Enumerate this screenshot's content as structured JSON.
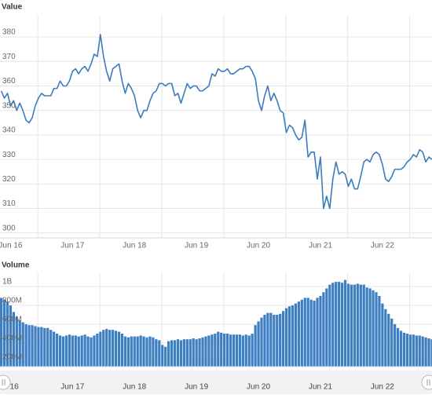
{
  "chart_data": [
    {
      "type": "line",
      "title": "Value",
      "x": [
        2016.41,
        2016.46,
        2016.51,
        2016.56,
        2016.61,
        2016.66,
        2016.71,
        2016.76,
        2016.81,
        2016.86,
        2016.91,
        2016.96,
        2017.01,
        2017.06,
        2017.11,
        2017.16,
        2017.21,
        2017.26,
        2017.31,
        2017.36,
        2017.41,
        2017.46,
        2017.51,
        2017.56,
        2017.61,
        2017.66,
        2017.71,
        2017.76,
        2017.81,
        2017.86,
        2017.91,
        2017.96,
        2018.01,
        2018.06,
        2018.11,
        2018.16,
        2018.21,
        2018.26,
        2018.31,
        2018.36,
        2018.41,
        2018.46,
        2018.51,
        2018.56,
        2018.61,
        2018.66,
        2018.71,
        2018.76,
        2018.81,
        2018.86,
        2018.91,
        2018.96,
        2019.01,
        2019.06,
        2019.11,
        2019.16,
        2019.21,
        2019.26,
        2019.31,
        2019.36,
        2019.41,
        2019.46,
        2019.51,
        2019.56,
        2019.61,
        2019.66,
        2019.71,
        2019.76,
        2019.81,
        2019.86,
        2019.91,
        2019.96,
        2020.01,
        2020.06,
        2020.11,
        2020.16,
        2020.21,
        2020.26,
        2020.31,
        2020.36,
        2020.41,
        2020.46,
        2020.51,
        2020.56,
        2020.61,
        2020.66,
        2020.71,
        2020.76,
        2020.81,
        2020.86,
        2020.91,
        2020.96,
        2021.01,
        2021.06,
        2021.11,
        2021.16,
        2021.21,
        2021.26,
        2021.31,
        2021.36,
        2021.41,
        2021.46,
        2021.51,
        2021.56,
        2021.61,
        2021.66,
        2021.71,
        2021.76,
        2021.81,
        2021.86,
        2021.91,
        2021.96,
        2022.01,
        2022.06,
        2022.11,
        2022.16,
        2022.21,
        2022.26,
        2022.31,
        2022.36,
        2022.41,
        2022.46,
        2022.51,
        2022.56,
        2022.61,
        2022.66,
        2022.71,
        2022.76,
        2022.81,
        2022.86,
        2022.91,
        2022.96,
        2023.01,
        2023.06,
        2023.11,
        2023.16,
        2023.21,
        2023.26,
        2023.31,
        2023.36
      ],
      "series": [
        {
          "color": "#3b7bbf",
          "values": [
            358,
            355,
            357,
            352,
            354,
            350,
            353,
            350,
            346,
            345,
            347,
            352,
            355,
            357,
            356,
            356,
            356,
            359,
            359,
            362,
            360,
            360,
            362,
            366,
            367,
            365,
            367,
            368,
            366,
            369,
            373,
            372,
            381,
            372,
            366,
            362,
            367,
            368,
            369,
            362,
            357,
            361,
            359,
            356,
            350,
            347,
            350,
            350,
            354,
            357,
            358,
            361,
            361,
            360,
            361,
            361,
            356,
            357,
            353,
            357,
            361,
            359,
            360,
            360,
            358,
            358,
            359,
            360,
            365,
            364,
            367,
            366,
            366,
            367,
            365,
            365,
            366,
            367,
            367,
            368,
            368,
            366,
            363,
            354,
            350,
            356,
            360,
            354,
            357,
            354,
            350,
            349,
            341,
            344,
            343,
            340,
            338,
            339,
            346,
            331,
            333,
            333,
            322,
            331,
            310,
            315,
            310,
            322,
            329,
            324,
            325,
            324,
            319,
            322,
            318,
            318,
            323,
            329,
            330,
            329,
            332,
            333,
            332,
            328,
            322,
            321,
            323,
            326,
            326,
            326,
            327,
            329,
            330,
            332,
            331,
            334,
            333,
            329,
            331,
            330
          ]
        }
      ],
      "xlim": [
        2016.39,
        2023.36
      ],
      "xticks": [
        {
          "value": 2016.56,
          "label": "Jun 16"
        },
        {
          "value": 2017.56,
          "label": "Jun 17"
        },
        {
          "value": 2018.56,
          "label": "Jun 18"
        },
        {
          "value": 2019.56,
          "label": "Jun 19"
        },
        {
          "value": 2020.56,
          "label": "Jun 20"
        },
        {
          "value": 2021.56,
          "label": "Jun 21"
        },
        {
          "value": 2022.56,
          "label": "Jun 22"
        }
      ],
      "xgrid": [
        2017,
        2018,
        2019,
        2020,
        2021,
        2022,
        2023
      ],
      "ylim": [
        298,
        389
      ],
      "yticks": [
        300,
        310,
        320,
        330,
        340,
        350,
        360,
        370,
        380
      ],
      "grid": true
    },
    {
      "type": "bar",
      "title": "Volume",
      "x": [
        2016.41,
        2016.46,
        2016.51,
        2016.56,
        2016.61,
        2016.66,
        2016.71,
        2016.76,
        2016.81,
        2016.86,
        2016.91,
        2016.96,
        2017.01,
        2017.06,
        2017.11,
        2017.16,
        2017.21,
        2017.26,
        2017.31,
        2017.36,
        2017.41,
        2017.46,
        2017.51,
        2017.56,
        2017.61,
        2017.66,
        2017.71,
        2017.76,
        2017.81,
        2017.86,
        2017.91,
        2017.96,
        2018.01,
        2018.06,
        2018.11,
        2018.16,
        2018.21,
        2018.26,
        2018.31,
        2018.36,
        2018.41,
        2018.46,
        2018.51,
        2018.56,
        2018.61,
        2018.66,
        2018.71,
        2018.76,
        2018.81,
        2018.86,
        2018.91,
        2018.96,
        2019.01,
        2019.06,
        2019.11,
        2019.16,
        2019.21,
        2019.26,
        2019.31,
        2019.36,
        2019.41,
        2019.46,
        2019.51,
        2019.56,
        2019.61,
        2019.66,
        2019.71,
        2019.76,
        2019.81,
        2019.86,
        2019.91,
        2019.96,
        2020.01,
        2020.06,
        2020.11,
        2020.16,
        2020.21,
        2020.26,
        2020.31,
        2020.36,
        2020.41,
        2020.46,
        2020.51,
        2020.56,
        2020.61,
        2020.66,
        2020.71,
        2020.76,
        2020.81,
        2020.86,
        2020.91,
        2020.96,
        2021.01,
        2021.06,
        2021.11,
        2021.16,
        2021.21,
        2021.26,
        2021.31,
        2021.36,
        2021.41,
        2021.46,
        2021.51,
        2021.56,
        2021.61,
        2021.66,
        2021.71,
        2021.76,
        2021.81,
        2021.86,
        2021.91,
        2021.96,
        2022.01,
        2022.06,
        2022.11,
        2022.16,
        2022.21,
        2022.26,
        2022.31,
        2022.36,
        2022.41,
        2022.46,
        2022.51,
        2022.56,
        2022.61,
        2022.66,
        2022.71,
        2022.76,
        2022.81,
        2022.86,
        2022.91,
        2022.96,
        2023.01,
        2023.06,
        2023.11,
        2023.16,
        2023.21,
        2023.26,
        2023.31,
        2023.36
      ],
      "series": [
        {
          "color": "#3d7fc1",
          "values": [
            880,
            860,
            840,
            800,
            730,
            680,
            640,
            620,
            600,
            590,
            590,
            580,
            570,
            570,
            560,
            560,
            540,
            520,
            500,
            480,
            470,
            480,
            490,
            480,
            480,
            470,
            480,
            490,
            470,
            460,
            480,
            500,
            520,
            540,
            550,
            540,
            540,
            530,
            520,
            500,
            470,
            460,
            470,
            470,
            470,
            480,
            470,
            460,
            470,
            460,
            440,
            430,
            380,
            360,
            420,
            430,
            430,
            440,
            430,
            440,
            440,
            440,
            450,
            440,
            450,
            460,
            470,
            480,
            490,
            500,
            520,
            510,
            500,
            500,
            490,
            490,
            490,
            490,
            480,
            490,
            480,
            500,
            590,
            630,
            670,
            700,
            720,
            720,
            700,
            700,
            710,
            740,
            770,
            790,
            800,
            820,
            840,
            860,
            880,
            880,
            860,
            850,
            880,
            900,
            940,
            980,
            1020,
            1040,
            1050,
            1050,
            1040,
            1070,
            1030,
            1020,
            1020,
            1030,
            1020,
            1020,
            990,
            980,
            960,
            940,
            900,
            820,
            760,
            710,
            660,
            600,
            560,
            530,
            510,
            500,
            490,
            490,
            480,
            480,
            470,
            460,
            450,
            440
          ]
        }
      ],
      "xlim": [
        2016.39,
        2023.36
      ],
      "xgrid": [
        2017,
        2018,
        2019,
        2020,
        2021,
        2022,
        2023
      ],
      "ylim": [
        150,
        1150
      ],
      "yticks": [
        {
          "value": 200,
          "label": "200M"
        },
        {
          "value": 400,
          "label": "400M"
        },
        {
          "value": 600,
          "label": "600M"
        },
        {
          "value": 800,
          "label": "800M"
        },
        {
          "value": 1000,
          "label": "1B"
        }
      ],
      "grid": true
    }
  ],
  "navigator": {
    "xticks": [
      {
        "value": 2016.62,
        "label": "16"
      },
      {
        "value": 2017.56,
        "label": "Jun 17"
      },
      {
        "value": 2018.56,
        "label": "Jun 18"
      },
      {
        "value": 2019.56,
        "label": "Jun 19"
      },
      {
        "value": 2020.56,
        "label": "Jun 20"
      },
      {
        "value": 2021.56,
        "label": "Jun 21"
      },
      {
        "value": 2022.56,
        "label": "Jun 22"
      }
    ]
  }
}
